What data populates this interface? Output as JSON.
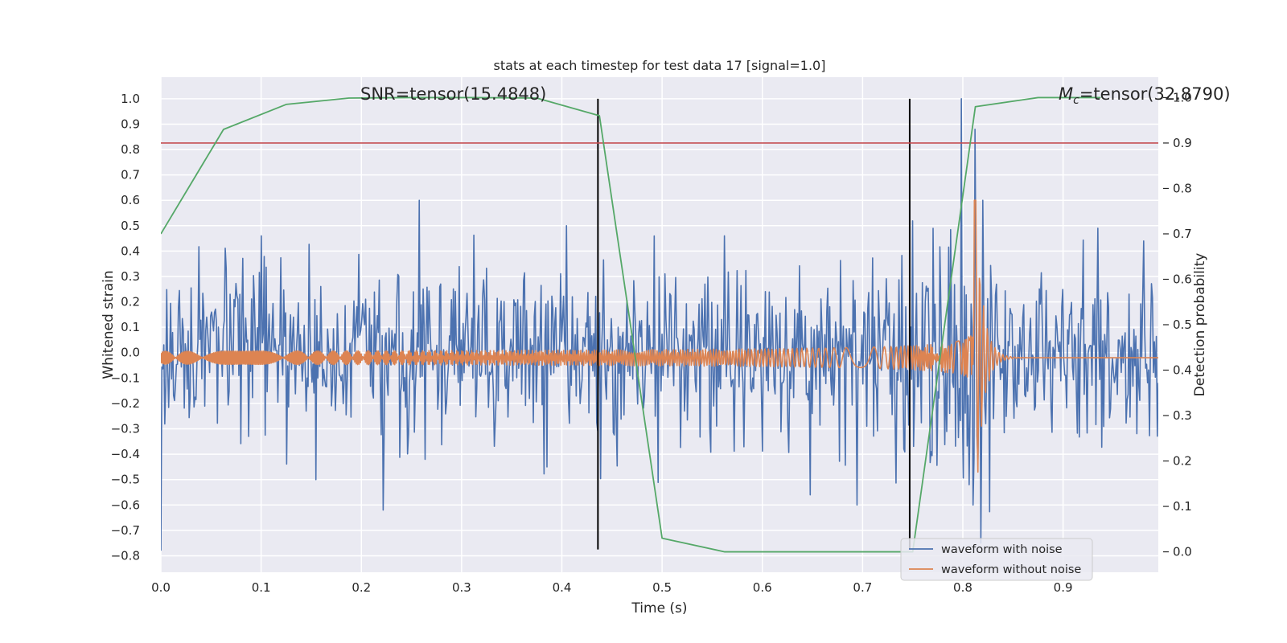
{
  "chart_data": {
    "type": "line",
    "title": "stats at each timestep for test data 17 [signal=1.0]",
    "xlabel": "Time (s)",
    "ylabel_left": "Whitened strain",
    "ylabel_right": "Detection probability",
    "xlim": [
      0.0,
      0.995
    ],
    "ylim_left": [
      -0.865,
      1.085
    ],
    "ylim_right": [
      -0.045,
      1.045
    ],
    "x_ticks": [
      "0.0",
      "0.1",
      "0.2",
      "0.3",
      "0.4",
      "0.5",
      "0.6",
      "0.7",
      "0.8",
      "0.9"
    ],
    "y_ticks_left": [
      "−0.8",
      "−0.7",
      "−0.6",
      "−0.5",
      "−0.4",
      "−0.3",
      "−0.2",
      "−0.1",
      "0.0",
      "0.1",
      "0.2",
      "0.3",
      "0.4",
      "0.5",
      "0.6",
      "0.7",
      "0.8",
      "0.9",
      "1.0"
    ],
    "y_ticks_right": [
      "0.0",
      "0.1",
      "0.2",
      "0.3",
      "0.4",
      "0.5",
      "0.6",
      "0.7",
      "0.8",
      "0.9",
      "1.0"
    ],
    "grid": true,
    "legend_position": "bottom-right",
    "annotations": {
      "snr": "SNR=tensor(15.4848)",
      "mc_symbol": "M",
      "mc_subscript": "c",
      "mc_value": "=tensor(32.8790)"
    },
    "threshold": {
      "value": 0.9,
      "axis": "right",
      "color": "#c44e52"
    },
    "vlines": [
      {
        "x": 0.436,
        "ymin": -0.775,
        "ymax": 1.0
      },
      {
        "x": 0.747,
        "ymin": -0.775,
        "ymax": 1.0
      }
    ],
    "series": [
      {
        "name": "waveform with noise",
        "axis": "left",
        "color": "#4c72b0",
        "x_start": 0.0,
        "x_end": 0.995,
        "n": 1024,
        "envelope": [
          {
            "t": 0.0,
            "a": 0.2
          },
          {
            "t": 0.7,
            "a": 0.22
          },
          {
            "t": 0.74,
            "a": 0.26
          },
          {
            "t": 0.78,
            "a": 0.3
          },
          {
            "t": 0.8,
            "a": 0.4
          },
          {
            "t": 0.82,
            "a": 0.3
          },
          {
            "t": 0.85,
            "a": 0.2
          },
          {
            "t": 0.995,
            "a": 0.2
          }
        ],
        "spikes": [
          {
            "x": 0.0,
            "y": -0.78
          },
          {
            "x": 0.258,
            "y": 0.6
          },
          {
            "x": 0.222,
            "y": -0.62
          },
          {
            "x": 0.1,
            "y": 0.46
          },
          {
            "x": 0.155,
            "y": -0.5
          },
          {
            "x": 0.405,
            "y": 0.5
          },
          {
            "x": 0.385,
            "y": -0.45
          },
          {
            "x": 0.562,
            "y": 0.46
          },
          {
            "x": 0.648,
            "y": -0.56
          },
          {
            "x": 0.694,
            "y": -0.6
          },
          {
            "x": 0.799,
            "y": 1.0
          },
          {
            "x": 0.806,
            "y": -0.52
          },
          {
            "x": 0.812,
            "y": 0.88
          },
          {
            "x": 0.818,
            "y": -0.75
          },
          {
            "x": 0.82,
            "y": 0.6
          },
          {
            "x": 0.81,
            "y": -0.6
          },
          {
            "x": 0.935,
            "y": 0.49
          },
          {
            "x": 0.98,
            "y": 0.44
          }
        ]
      },
      {
        "name": "waveform without noise",
        "axis": "left",
        "color": "#dd8452",
        "x_start": 0.0,
        "x_end": 0.995,
        "n": 1400,
        "chirp": {
          "t_peak": 0.813,
          "phase_scale": 60,
          "exponent": 0.625,
          "amp_scale": 0.043,
          "amp_exponent": 0.25,
          "amp_max": 0.62,
          "ringdown_tau": 0.007,
          "offset": -0.02
        }
      },
      {
        "name": "detection probability",
        "axis": "right",
        "color": "#55a868",
        "x": [
          0.0,
          0.0625,
          0.125,
          0.1875,
          0.25,
          0.3125,
          0.375,
          0.4375,
          0.5,
          0.5625,
          0.625,
          0.6875,
          0.75,
          0.8125,
          0.875,
          0.9375
        ],
        "values": [
          0.7,
          0.93,
          0.985,
          0.999,
          1.0,
          1.0,
          0.999,
          0.96,
          0.03,
          0.0,
          0.0,
          0.0,
          0.0,
          0.98,
          1.0,
          1.0
        ]
      }
    ]
  }
}
